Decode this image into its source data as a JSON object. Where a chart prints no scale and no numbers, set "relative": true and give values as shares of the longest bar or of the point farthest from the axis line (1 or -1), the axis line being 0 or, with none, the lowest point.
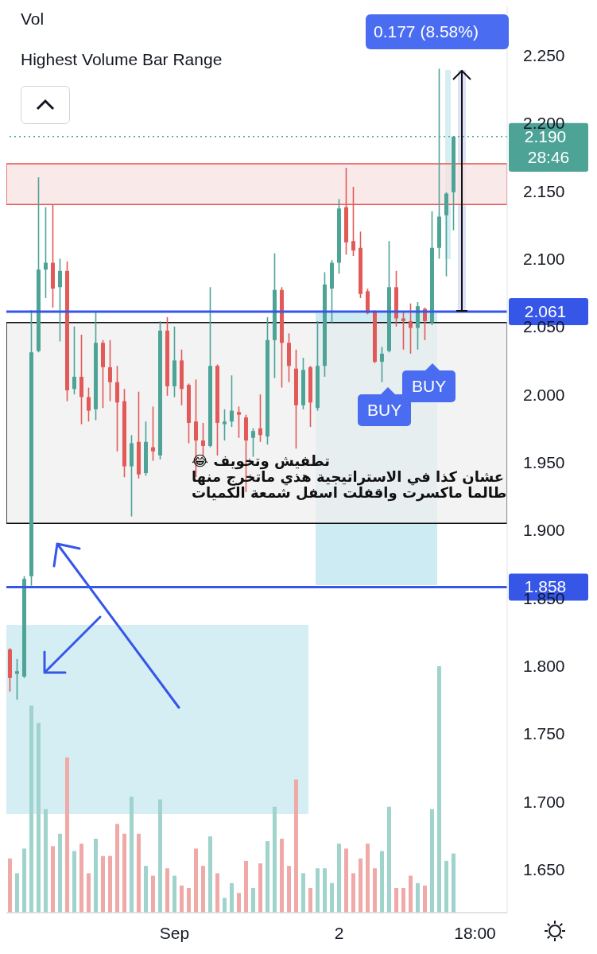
{
  "chart_data": [
    {
      "type": "candlestick",
      "title": "Highest Volume Bar Range",
      "categories": [
        null,
        null,
        null,
        null,
        null,
        null,
        null,
        null,
        null,
        null,
        null,
        null,
        null,
        null,
        null,
        null,
        null,
        null,
        null,
        null,
        null,
        null,
        null,
        "Sep",
        null,
        null,
        null,
        null,
        null,
        null,
        null,
        null,
        null,
        null,
        null,
        null,
        null,
        null,
        null,
        null,
        null,
        null,
        null,
        null,
        null,
        null,
        "2",
        null,
        null,
        null,
        null,
        null,
        null,
        null,
        null,
        null,
        null,
        null,
        null,
        null,
        null,
        null,
        null,
        null,
        null,
        "18:00",
        null,
        null,
        null,
        null
      ],
      "ohlc": [
        [
          1.812,
          1.813,
          1.781,
          1.791
        ],
        [
          1.794,
          1.805,
          1.775,
          1.796
        ],
        [
          1.792,
          1.866,
          1.791,
          1.864
        ],
        [
          1.866,
          2.062,
          1.859,
          2.031
        ],
        [
          2.032,
          2.16,
          2.031,
          2.092
        ],
        [
          2.092,
          2.138,
          2.071,
          2.097
        ],
        [
          2.097,
          2.14,
          2.064,
          2.078
        ],
        [
          2.079,
          2.1,
          2.039,
          2.091
        ],
        [
          2.091,
          2.098,
          1.995,
          2.003
        ],
        [
          2.004,
          2.05,
          2.0,
          2.013
        ],
        [
          2.013,
          2.044,
          1.978,
          1.998
        ],
        [
          1.998,
          2.005,
          1.98,
          1.988
        ],
        [
          1.989,
          2.061,
          1.981,
          2.038
        ],
        [
          2.038,
          2.04,
          1.99,
          2.02
        ],
        [
          2.02,
          2.04,
          1.995,
          2.009
        ],
        [
          2.009,
          2.021,
          1.958,
          1.994
        ],
        [
          1.995,
          2.004,
          1.939,
          1.947
        ],
        [
          1.947,
          1.97,
          1.91,
          1.964
        ],
        [
          1.965,
          2.002,
          1.938,
          1.941
        ],
        [
          1.942,
          1.98,
          1.94,
          1.965
        ],
        [
          1.961,
          1.991,
          1.951,
          1.958
        ],
        [
          1.955,
          2.054,
          1.952,
          2.047
        ],
        [
          2.047,
          2.057,
          1.999,
          2.006
        ],
        [
          2.006,
          2.05,
          1.998,
          2.025
        ],
        [
          2.025,
          2.033,
          1.992,
          2.004
        ],
        [
          2.007,
          2.008,
          1.964,
          1.979
        ],
        [
          1.98,
          2.011,
          1.939,
          1.966
        ],
        [
          1.966,
          1.979,
          1.954,
          1.962
        ],
        [
          1.962,
          2.079,
          1.961,
          2.021
        ],
        [
          2.021,
          2.022,
          1.955,
          1.979
        ],
        [
          1.978,
          1.989,
          1.966,
          1.98
        ],
        [
          1.98,
          2.014,
          1.976,
          1.988
        ],
        [
          1.987,
          1.991,
          1.968,
          1.985
        ],
        [
          1.983,
          1.985,
          1.928,
          1.966
        ],
        [
          1.968,
          1.975,
          1.954,
          1.973
        ],
        [
          1.975,
          2.0,
          1.965,
          1.97
        ],
        [
          1.969,
          2.057,
          1.963,
          2.04
        ],
        [
          2.04,
          2.104,
          2.012,
          2.077
        ],
        [
          2.077,
          2.079,
          2.005,
          2.038
        ],
        [
          2.038,
          2.045,
          2.009,
          2.021
        ],
        [
          2.019,
          2.033,
          1.96,
          1.992
        ],
        [
          1.992,
          2.027,
          1.989,
          2.018
        ],
        [
          2.02,
          2.021,
          1.976,
          1.994
        ],
        [
          1.99,
          2.054,
          1.988,
          2.021
        ],
        [
          2.021,
          2.09,
          2.013,
          2.081
        ],
        [
          2.078,
          2.099,
          2.053,
          2.097
        ],
        [
          2.097,
          2.144,
          2.089,
          2.137
        ],
        [
          2.138,
          2.167,
          2.103,
          2.112
        ],
        [
          2.113,
          2.153,
          2.102,
          2.106
        ],
        [
          2.108,
          2.12,
          2.071,
          2.074
        ],
        [
          2.076,
          2.078,
          2.059,
          2.06
        ],
        [
          2.061,
          2.062,
          2.023,
          2.024
        ],
        [
          2.024,
          2.035,
          2.009,
          2.03
        ],
        [
          2.032,
          2.113,
          2.031,
          2.079
        ],
        [
          2.079,
          2.091,
          2.05,
          2.056
        ],
        [
          2.056,
          2.061,
          2.033,
          2.054
        ],
        [
          2.054,
          2.067,
          2.03,
          2.049
        ],
        [
          2.049,
          2.068,
          2.033,
          2.065
        ],
        [
          2.063,
          2.064,
          2.04,
          2.054
        ],
        [
          2.053,
          2.135,
          2.051,
          2.108
        ],
        [
          2.108,
          2.24,
          2.1,
          2.131
        ],
        [
          2.132,
          2.149,
          2.087,
          2.148
        ],
        [
          2.149,
          2.19,
          2.121,
          2.19
        ],
        null,
        null,
        null,
        null,
        null,
        null,
        null
      ],
      "ylim": [
        1.618,
        2.286
      ],
      "yticks": [
        {
          "value": 1.65,
          "label": "1.650"
        },
        {
          "value": 1.7,
          "label": "1.700"
        },
        {
          "value": 1.75,
          "label": "1.750"
        },
        {
          "value": 1.8,
          "label": "1.800"
        },
        {
          "value": 1.85,
          "label": "1.850"
        },
        {
          "value": 1.9,
          "label": "1.900"
        },
        {
          "value": 1.95,
          "label": "1.950"
        },
        {
          "value": 2.0,
          "label": "2.000"
        },
        {
          "value": 2.05,
          "label": "2.050"
        },
        {
          "value": 2.1,
          "label": "2.100"
        },
        {
          "value": 2.15,
          "label": "2.150"
        },
        {
          "value": 2.2,
          "label": "2.200"
        },
        {
          "value": 2.25,
          "label": "2.250"
        }
      ],
      "bands": [
        {
          "axis": "y",
          "from": 2.14,
          "to": 2.17,
          "color": "#f8e1e1"
        },
        {
          "axis": "y",
          "from": 1.905,
          "to": 2.053,
          "color": "#efefef"
        }
      ],
      "ref_lines": [
        {
          "axis": "y",
          "value": 2.061,
          "label": "2.061",
          "color": "#3656e8"
        },
        {
          "axis": "y",
          "value": 1.858,
          "label": "1.858",
          "color": "#3656e8"
        },
        {
          "axis": "y",
          "value": 2.19,
          "label": "2.190",
          "color": "#4ea397",
          "line_style": "dotted"
        }
      ],
      "annotations": [
        "0.177 (8.58%)",
        "BUY",
        "BUY",
        "تطفيش وتخويف 😂",
        "عشان كذا في الاستراتيجية هذي ماتخرج منها",
        "طالما ماكسرت واقفلت اسفل شمعة الكميات",
        "28:46"
      ]
    },
    {
      "type": "bar",
      "title": "Vol",
      "relative": true,
      "categories": [
        null,
        null,
        null,
        null,
        null,
        null,
        null,
        null,
        null,
        null,
        null,
        null,
        null,
        null,
        null,
        null,
        null,
        null,
        null,
        null,
        null,
        null,
        null,
        null,
        null,
        null,
        null,
        null,
        null,
        null,
        null,
        null,
        null,
        null,
        null,
        null,
        null,
        null,
        null,
        null,
        null,
        null,
        null,
        null,
        null,
        null,
        null,
        null,
        null,
        null,
        null,
        null,
        null,
        null,
        null,
        null,
        null,
        null,
        null,
        null,
        null,
        null,
        null,
        null,
        null,
        null,
        null,
        null,
        null,
        null
      ],
      "values": [
        0.22,
        0.16,
        0.26,
        0.84,
        0.77,
        0.42,
        0.27,
        0.32,
        0.63,
        0.25,
        0.28,
        0.16,
        0.3,
        0.23,
        0.23,
        0.36,
        0.32,
        0.47,
        0.32,
        0.19,
        0.15,
        0.46,
        0.18,
        0.15,
        0.11,
        0.1,
        0.26,
        0.19,
        0.31,
        0.16,
        0.06,
        0.12,
        0.08,
        0.21,
        0.1,
        0.2,
        0.29,
        0.43,
        0.3,
        0.19,
        0.54,
        0.16,
        0.1,
        0.18,
        0.18,
        0.12,
        0.28,
        0.26,
        0.16,
        0.22,
        0.28,
        0.18,
        0.25,
        0.43,
        0.1,
        0.1,
        0.15,
        0.12,
        0.11,
        0.42,
        1,
        0.21,
        0.24,
        null,
        null,
        null,
        null,
        null,
        null,
        null
      ],
      "colors": [
        "#efaaa7",
        "#9fd3cc",
        "#9fd3cc",
        "#9fd3cc",
        "#9fd3cc",
        "#9fd3cc",
        "#efaaa7",
        "#9fd3cc",
        "#efaaa7",
        "#9fd3cc",
        "#efaaa7",
        "#efaaa7",
        "#9fd3cc",
        "#efaaa7",
        "#efaaa7",
        "#efaaa7",
        "#efaaa7",
        "#9fd3cc",
        "#efaaa7",
        "#9fd3cc",
        "#efaaa7",
        "#9fd3cc",
        "#efaaa7",
        "#9fd3cc",
        "#efaaa7",
        "#efaaa7",
        "#efaaa7",
        "#efaaa7",
        "#9fd3cc",
        "#efaaa7",
        "#9fd3cc",
        "#9fd3cc",
        "#efaaa7",
        "#efaaa7",
        "#9fd3cc",
        "#efaaa7",
        "#9fd3cc",
        "#9fd3cc",
        "#efaaa7",
        "#efaaa7",
        "#efaaa7",
        "#9fd3cc",
        "#efaaa7",
        "#9fd3cc",
        "#9fd3cc",
        "#9fd3cc",
        "#9fd3cc",
        "#efaaa7",
        "#efaaa7",
        "#efaaa7",
        "#efaaa7",
        "#efaaa7",
        "#9fd3cc",
        "#9fd3cc",
        "#efaaa7",
        "#efaaa7",
        "#efaaa7",
        "#9fd3cc",
        "#efaaa7",
        "#9fd3cc",
        "#9fd3cc",
        "#9fd3cc",
        "#9fd3cc",
        null,
        null,
        null,
        null,
        null,
        null,
        null
      ]
    }
  ]
}
